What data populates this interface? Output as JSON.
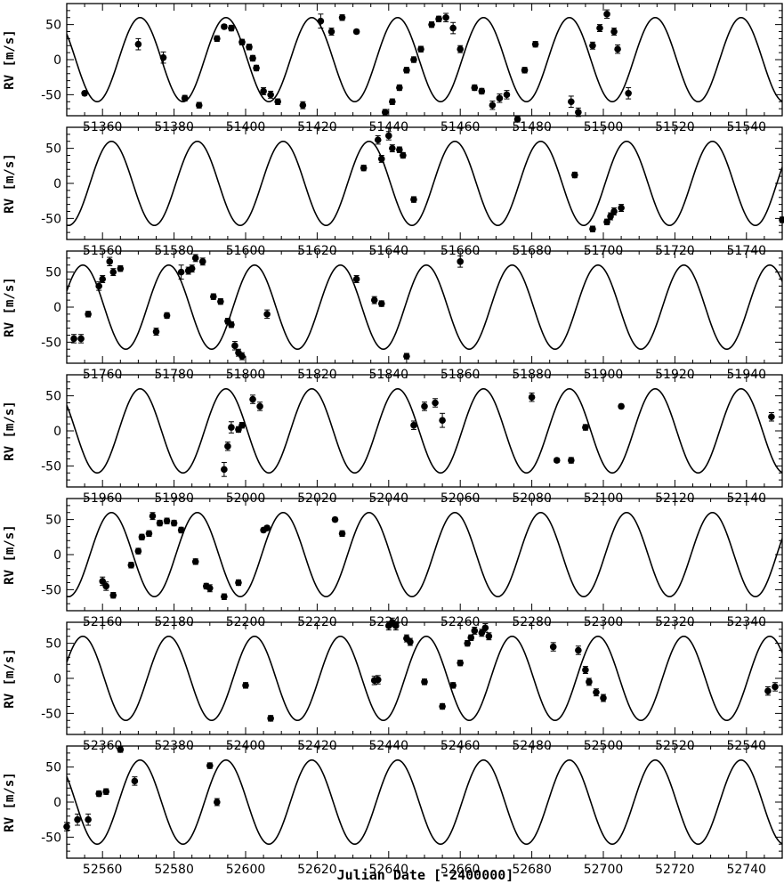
{
  "chart_data": {
    "type": "scatter",
    "xlabel": "Julian Date [-2400000]",
    "ylabel": "RV [m/s]",
    "model": {
      "amplitude": 60,
      "period": 24.0,
      "phase_zero": 51370.5
    },
    "grid": false,
    "panels": [
      {
        "xlim": [
          51350,
          51550
        ],
        "ylim": [
          -80,
          80
        ],
        "xticks": [
          51360,
          51380,
          51400,
          51420,
          51440,
          51460,
          51480,
          51500,
          51520,
          51540
        ],
        "yticks": [
          -50,
          0,
          50
        ],
        "points": [
          {
            "x": 51355,
            "y": -48,
            "e": 3
          },
          {
            "x": 51370,
            "y": 22,
            "e": 8
          },
          {
            "x": 51377,
            "y": 3,
            "e": 8
          },
          {
            "x": 51383,
            "y": -55,
            "e": 4
          },
          {
            "x": 51387,
            "y": -65,
            "e": 4
          },
          {
            "x": 51392,
            "y": 30,
            "e": 4
          },
          {
            "x": 51394,
            "y": 47,
            "e": 3
          },
          {
            "x": 51396,
            "y": 45,
            "e": 4
          },
          {
            "x": 51399,
            "y": 25,
            "e": 4
          },
          {
            "x": 51401,
            "y": 18,
            "e": 4
          },
          {
            "x": 51402,
            "y": 2,
            "e": 4
          },
          {
            "x": 51403,
            "y": -12,
            "e": 4
          },
          {
            "x": 51405,
            "y": -45,
            "e": 5
          },
          {
            "x": 51407,
            "y": -50,
            "e": 5
          },
          {
            "x": 51409,
            "y": -60,
            "e": 4
          },
          {
            "x": 51416,
            "y": -65,
            "e": 5
          },
          {
            "x": 51421,
            "y": 55,
            "e": 10
          },
          {
            "x": 51424,
            "y": 40,
            "e": 5
          },
          {
            "x": 51427,
            "y": 60,
            "e": 4
          },
          {
            "x": 51431,
            "y": 40,
            "e": 3
          },
          {
            "x": 51439,
            "y": -75,
            "e": 4
          },
          {
            "x": 51441,
            "y": -60,
            "e": 4
          },
          {
            "x": 51443,
            "y": -40,
            "e": 4
          },
          {
            "x": 51445,
            "y": -15,
            "e": 4
          },
          {
            "x": 51447,
            "y": 0,
            "e": 4
          },
          {
            "x": 51449,
            "y": 15,
            "e": 4
          },
          {
            "x": 51452,
            "y": 50,
            "e": 4
          },
          {
            "x": 51454,
            "y": 58,
            "e": 4
          },
          {
            "x": 51456,
            "y": 60,
            "e": 6
          },
          {
            "x": 51458,
            "y": 45,
            "e": 8
          },
          {
            "x": 51460,
            "y": 15,
            "e": 5
          },
          {
            "x": 51464,
            "y": -40,
            "e": 4
          },
          {
            "x": 51466,
            "y": -45,
            "e": 4
          },
          {
            "x": 51469,
            "y": -65,
            "e": 6
          },
          {
            "x": 51471,
            "y": -55,
            "e": 6
          },
          {
            "x": 51473,
            "y": -50,
            "e": 6
          },
          {
            "x": 51476,
            "y": -85,
            "e": 4
          },
          {
            "x": 51478,
            "y": -15,
            "e": 4
          },
          {
            "x": 51481,
            "y": 22,
            "e": 4
          },
          {
            "x": 51491,
            "y": -60,
            "e": 8
          },
          {
            "x": 51493,
            "y": -75,
            "e": 6
          },
          {
            "x": 51497,
            "y": 20,
            "e": 5
          },
          {
            "x": 51499,
            "y": 45,
            "e": 5
          },
          {
            "x": 51501,
            "y": 65,
            "e": 6
          },
          {
            "x": 51503,
            "y": 40,
            "e": 5
          },
          {
            "x": 51504,
            "y": 15,
            "e": 6
          },
          {
            "x": 51507,
            "y": -48,
            "e": 8
          }
        ]
      },
      {
        "xlim": [
          51550,
          51750
        ],
        "ylim": [
          -80,
          80
        ],
        "xticks": [
          51560,
          51580,
          51600,
          51620,
          51640,
          51660,
          51680,
          51700,
          51720,
          51740
        ],
        "yticks": [
          -50,
          0,
          50
        ],
        "points": [
          {
            "x": 51633,
            "y": 22,
            "e": 4
          },
          {
            "x": 51637,
            "y": 62,
            "e": 6
          },
          {
            "x": 51638,
            "y": 35,
            "e": 5
          },
          {
            "x": 51640,
            "y": 68,
            "e": 6
          },
          {
            "x": 51641,
            "y": 50,
            "e": 5
          },
          {
            "x": 51643,
            "y": 48,
            "e": 4
          },
          {
            "x": 51644,
            "y": 40,
            "e": 4
          },
          {
            "x": 51647,
            "y": -23,
            "e": 4
          },
          {
            "x": 51692,
            "y": 12,
            "e": 4
          },
          {
            "x": 51697,
            "y": -65,
            "e": 4
          },
          {
            "x": 51701,
            "y": -55,
            "e": 4
          },
          {
            "x": 51702,
            "y": -47,
            "e": 5
          },
          {
            "x": 51703,
            "y": -40,
            "e": 5
          },
          {
            "x": 51705,
            "y": -35,
            "e": 5
          },
          {
            "x": 51750,
            "y": -52,
            "e": 4
          }
        ]
      },
      {
        "xlim": [
          51750,
          51950
        ],
        "ylim": [
          -80,
          80
        ],
        "xticks": [
          51760,
          51780,
          51800,
          51820,
          51840,
          51860,
          51880,
          51900,
          51920,
          51940
        ],
        "yticks": [
          -50,
          0,
          50
        ],
        "points": [
          {
            "x": 51752,
            "y": -45,
            "e": 6
          },
          {
            "x": 51754,
            "y": -45,
            "e": 6
          },
          {
            "x": 51756,
            "y": -10,
            "e": 4
          },
          {
            "x": 51759,
            "y": 30,
            "e": 6
          },
          {
            "x": 51760,
            "y": 40,
            "e": 5
          },
          {
            "x": 51762,
            "y": 65,
            "e": 6
          },
          {
            "x": 51763,
            "y": 50,
            "e": 5
          },
          {
            "x": 51765,
            "y": 55,
            "e": 4
          },
          {
            "x": 51775,
            "y": -35,
            "e": 5
          },
          {
            "x": 51778,
            "y": -12,
            "e": 4
          },
          {
            "x": 51782,
            "y": 50,
            "e": 10
          },
          {
            "x": 51784,
            "y": 52,
            "e": 5
          },
          {
            "x": 51785,
            "y": 55,
            "e": 5
          },
          {
            "x": 51786,
            "y": 70,
            "e": 5
          },
          {
            "x": 51788,
            "y": 65,
            "e": 5
          },
          {
            "x": 51791,
            "y": 15,
            "e": 4
          },
          {
            "x": 51793,
            "y": 8,
            "e": 4
          },
          {
            "x": 51795,
            "y": -20,
            "e": 4
          },
          {
            "x": 51796,
            "y": -25,
            "e": 4
          },
          {
            "x": 51797,
            "y": -55,
            "e": 6
          },
          {
            "x": 51798,
            "y": -65,
            "e": 5
          },
          {
            "x": 51799,
            "y": -70,
            "e": 5
          },
          {
            "x": 51806,
            "y": -10,
            "e": 6
          },
          {
            "x": 51831,
            "y": 40,
            "e": 5
          },
          {
            "x": 51836,
            "y": 10,
            "e": 5
          },
          {
            "x": 51838,
            "y": 5,
            "e": 4
          },
          {
            "x": 51845,
            "y": -70,
            "e": 4
          },
          {
            "x": 51860,
            "y": 65,
            "e": 8
          }
        ]
      },
      {
        "xlim": [
          51950,
          52150
        ],
        "ylim": [
          -80,
          80
        ],
        "xticks": [
          51960,
          51980,
          52000,
          52020,
          52040,
          52060,
          52080,
          52100,
          52120,
          52140
        ],
        "yticks": [
          -50,
          0,
          50
        ],
        "points": [
          {
            "x": 51994,
            "y": -55,
            "e": 10
          },
          {
            "x": 51995,
            "y": -22,
            "e": 6
          },
          {
            "x": 51996,
            "y": 5,
            "e": 8
          },
          {
            "x": 51998,
            "y": 2,
            "e": 4
          },
          {
            "x": 51999,
            "y": 8,
            "e": 4
          },
          {
            "x": 52002,
            "y": 45,
            "e": 6
          },
          {
            "x": 52004,
            "y": 35,
            "e": 6
          },
          {
            "x": 52047,
            "y": 8,
            "e": 6
          },
          {
            "x": 52050,
            "y": 35,
            "e": 6
          },
          {
            "x": 52053,
            "y": 40,
            "e": 6
          },
          {
            "x": 52055,
            "y": 15,
            "e": 10
          },
          {
            "x": 52080,
            "y": 48,
            "e": 6
          },
          {
            "x": 52087,
            "y": -42,
            "e": 3
          },
          {
            "x": 52091,
            "y": -42,
            "e": 4
          },
          {
            "x": 52095,
            "y": 5,
            "e": 4
          },
          {
            "x": 52105,
            "y": 35,
            "e": 3
          },
          {
            "x": 52147,
            "y": 20,
            "e": 6
          }
        ]
      },
      {
        "xlim": [
          52150,
          52350
        ],
        "ylim": [
          -80,
          80
        ],
        "xticks": [
          52160,
          52180,
          52200,
          52220,
          52240,
          52260,
          52280,
          52300,
          52320,
          52340
        ],
        "yticks": [
          -50,
          0,
          50
        ],
        "points": [
          {
            "x": 52160,
            "y": -38,
            "e": 6
          },
          {
            "x": 52161,
            "y": -45,
            "e": 6
          },
          {
            "x": 52163,
            "y": -58,
            "e": 4
          },
          {
            "x": 52168,
            "y": -15,
            "e": 4
          },
          {
            "x": 52170,
            "y": 5,
            "e": 4
          },
          {
            "x": 52171,
            "y": 25,
            "e": 4
          },
          {
            "x": 52173,
            "y": 30,
            "e": 4
          },
          {
            "x": 52174,
            "y": 55,
            "e": 5
          },
          {
            "x": 52176,
            "y": 45,
            "e": 4
          },
          {
            "x": 52178,
            "y": 48,
            "e": 4
          },
          {
            "x": 52180,
            "y": 45,
            "e": 4
          },
          {
            "x": 52182,
            "y": 35,
            "e": 4
          },
          {
            "x": 52186,
            "y": -10,
            "e": 4
          },
          {
            "x": 52189,
            "y": -45,
            "e": 4
          },
          {
            "x": 52190,
            "y": -48,
            "e": 5
          },
          {
            "x": 52194,
            "y": -60,
            "e": 4
          },
          {
            "x": 52198,
            "y": -40,
            "e": 4
          },
          {
            "x": 52205,
            "y": 35,
            "e": 3
          },
          {
            "x": 52206,
            "y": 38,
            "e": 3
          },
          {
            "x": 52225,
            "y": 50,
            "e": 3
          },
          {
            "x": 52227,
            "y": 30,
            "e": 4
          }
        ]
      },
      {
        "xlim": [
          52350,
          52550
        ],
        "ylim": [
          -80,
          80
        ],
        "xticks": [
          52360,
          52380,
          52400,
          52420,
          52440,
          52460,
          52480,
          52500,
          52520,
          52540
        ],
        "yticks": [
          -50,
          0,
          50
        ],
        "points": [
          {
            "x": 52400,
            "y": -10,
            "e": 4
          },
          {
            "x": 52407,
            "y": -57,
            "e": 4
          },
          {
            "x": 52436,
            "y": -3,
            "e": 6
          },
          {
            "x": 52437,
            "y": -2,
            "e": 6
          },
          {
            "x": 52440,
            "y": 75,
            "e": 6
          },
          {
            "x": 52441,
            "y": 80,
            "e": 6
          },
          {
            "x": 52442,
            "y": 75,
            "e": 6
          },
          {
            "x": 52445,
            "y": 57,
            "e": 5
          },
          {
            "x": 52446,
            "y": 52,
            "e": 5
          },
          {
            "x": 52450,
            "y": -5,
            "e": 4
          },
          {
            "x": 52455,
            "y": -40,
            "e": 4
          },
          {
            "x": 52458,
            "y": -10,
            "e": 4
          },
          {
            "x": 52460,
            "y": 22,
            "e": 4
          },
          {
            "x": 52462,
            "y": 50,
            "e": 4
          },
          {
            "x": 52463,
            "y": 58,
            "e": 4
          },
          {
            "x": 52464,
            "y": 68,
            "e": 5
          },
          {
            "x": 52466,
            "y": 65,
            "e": 5
          },
          {
            "x": 52467,
            "y": 72,
            "e": 6
          },
          {
            "x": 52468,
            "y": 60,
            "e": 5
          },
          {
            "x": 52486,
            "y": 45,
            "e": 6
          },
          {
            "x": 52493,
            "y": 40,
            "e": 6
          },
          {
            "x": 52495,
            "y": 12,
            "e": 5
          },
          {
            "x": 52496,
            "y": -5,
            "e": 5
          },
          {
            "x": 52498,
            "y": -20,
            "e": 5
          },
          {
            "x": 52500,
            "y": -28,
            "e": 5
          },
          {
            "x": 52546,
            "y": -18,
            "e": 6
          },
          {
            "x": 52548,
            "y": -12,
            "e": 6
          }
        ]
      },
      {
        "xlim": [
          52550,
          52750
        ],
        "ylim": [
          -80,
          80
        ],
        "xticks": [
          52560,
          52580,
          52600,
          52620,
          52640,
          52660,
          52680,
          52700,
          52720,
          52740
        ],
        "yticks": [
          -50,
          0,
          50
        ],
        "points": [
          {
            "x": 52550,
            "y": -35,
            "e": 6
          },
          {
            "x": 52553,
            "y": -25,
            "e": 8
          },
          {
            "x": 52556,
            "y": -25,
            "e": 8
          },
          {
            "x": 52559,
            "y": 12,
            "e": 4
          },
          {
            "x": 52561,
            "y": 15,
            "e": 4
          },
          {
            "x": 52565,
            "y": 75,
            "e": 4
          },
          {
            "x": 52569,
            "y": 30,
            "e": 6
          },
          {
            "x": 52590,
            "y": 52,
            "e": 4
          },
          {
            "x": 52592,
            "y": 0,
            "e": 5
          }
        ]
      }
    ]
  }
}
